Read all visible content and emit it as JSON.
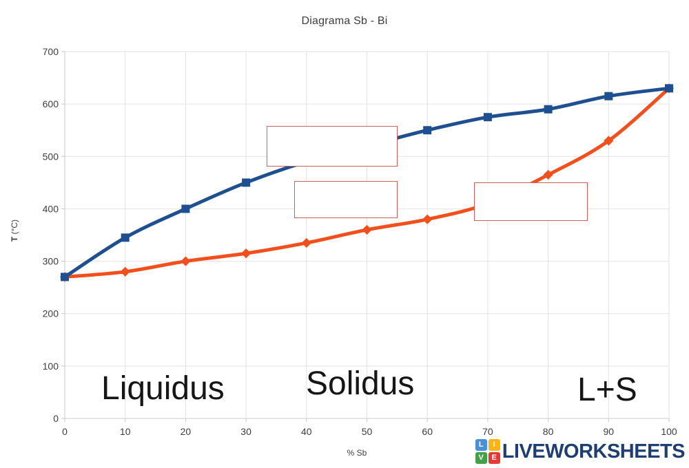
{
  "title": "Diagrama Sb - Bi",
  "chart_data": {
    "type": "line",
    "title": "Diagrama Sb - Bi",
    "xlabel": "% Sb",
    "ylabel": "T (°C)",
    "xlim": [
      0,
      100
    ],
    "ylim": [
      0,
      700
    ],
    "x_ticks": [
      0,
      10,
      20,
      30,
      40,
      50,
      60,
      70,
      80,
      90,
      100
    ],
    "y_ticks": [
      0,
      100,
      200,
      300,
      400,
      500,
      600,
      700
    ],
    "grid": true,
    "legend_position": "none",
    "x": [
      0,
      10,
      20,
      30,
      40,
      50,
      60,
      70,
      80,
      90,
      100
    ],
    "series": [
      {
        "name": "Liquidus",
        "color": "#1d4f91",
        "marker": "square",
        "values": [
          270,
          345,
          400,
          450,
          490,
          520,
          550,
          575,
          590,
          615,
          630
        ]
      },
      {
        "name": "Solidus",
        "color": "#f34f1c",
        "marker": "diamond",
        "values": [
          270,
          280,
          300,
          315,
          335,
          360,
          380,
          410,
          465,
          530,
          630
        ]
      }
    ],
    "annotations": [
      "Liquidus",
      "Solidus",
      "L+S"
    ]
  },
  "axis": {
    "ylabel_bold": "T",
    "ylabel_unit": " (°C)",
    "xlabel": "% Sb"
  },
  "labels": {
    "liquidus": "Liquidus",
    "solidus": "Solidus",
    "l_plus_s": "L+S"
  },
  "answer_boxes": [
    {
      "id": 1,
      "value": ""
    },
    {
      "id": 2,
      "value": ""
    },
    {
      "id": 3,
      "value": ""
    }
  ],
  "colors": {
    "liquidus_line": "#1d4f91",
    "solidus_line": "#f34f1c",
    "gridline": "#e2e2e2",
    "axis_line": "#c8c8c8",
    "tick_text": "#3d3d3d",
    "answer_box_border": "#c75f5f"
  },
  "logo": {
    "text": "LIVEWORKSHEETS",
    "color": "#1d3d73",
    "tiles": [
      {
        "letter": "L",
        "color": "#4a90d9"
      },
      {
        "letter": "I",
        "color": "#fdb414"
      },
      {
        "letter": "V",
        "color": "#43a047"
      },
      {
        "letter": "E",
        "color": "#e53935"
      }
    ]
  }
}
